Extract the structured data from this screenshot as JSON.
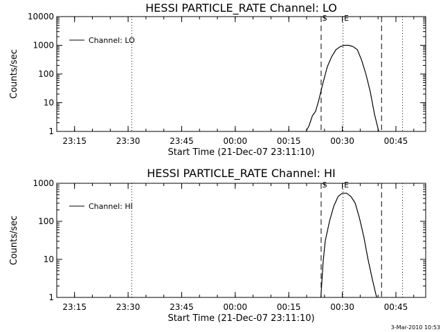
{
  "footer": {
    "timestamp": "3-Mar-2010 10:53"
  },
  "chart_data": [
    {
      "type": "line",
      "title": "HESSI PARTICLE_RATE Channel: LO",
      "xlabel": "Start Time (21-Dec-07 23:11:10)",
      "ylabel": "Counts/sec",
      "yscale": "log",
      "xlim": [
        23.167,
        24.889
      ],
      "ylim": [
        1,
        10000
      ],
      "x_tick_values": [
        23.25,
        23.5,
        23.75,
        24.0,
        24.25,
        24.5,
        24.75
      ],
      "x_tick_labels": [
        "23:15",
        "23:30",
        "23:45",
        "00:00",
        "00:15",
        "00:30",
        "00:45"
      ],
      "y_tick_values": [
        1,
        10,
        100,
        1000,
        10000
      ],
      "y_tick_labels": [
        "1",
        "10",
        "100",
        "1000",
        "10000"
      ],
      "legend": {
        "label": "Channel: LO",
        "position": "top-left"
      },
      "series": [
        {
          "name": "Channel: LO",
          "x": [
            24.33,
            24.345,
            24.36,
            24.375,
            24.39,
            24.41,
            24.43,
            24.45,
            24.47,
            24.49,
            24.51,
            24.53,
            24.55,
            24.57,
            24.59,
            24.61,
            24.63,
            24.65,
            24.67
          ],
          "y": [
            1,
            1.6,
            3.5,
            5,
            12,
            50,
            180,
            400,
            700,
            900,
            1000,
            1000,
            900,
            700,
            300,
            100,
            25,
            4,
            1
          ]
        }
      ],
      "vertical_lines": [
        {
          "x": 23.517,
          "style": "dotted"
        },
        {
          "x": 24.401,
          "style": "dashed"
        },
        {
          "x": 24.503,
          "style": "dotted"
        },
        {
          "x": 24.683,
          "style": "dashed"
        },
        {
          "x": 24.781,
          "style": "dotted"
        }
      ],
      "markers": [
        {
          "x": 24.401,
          "label": "S"
        },
        {
          "x": 24.503,
          "label": "E"
        }
      ]
    },
    {
      "type": "line",
      "title": "HESSI PARTICLE_RATE Channel: HI",
      "xlabel": "Start Time (21-Dec-07 23:11:10)",
      "ylabel": "Counts/sec",
      "yscale": "log",
      "xlim": [
        23.167,
        24.889
      ],
      "ylim": [
        1,
        1000
      ],
      "x_tick_values": [
        23.25,
        23.5,
        23.75,
        24.0,
        24.25,
        24.5,
        24.75
      ],
      "x_tick_labels": [
        "23:15",
        "23:30",
        "23:45",
        "00:00",
        "00:15",
        "00:30",
        "00:45"
      ],
      "y_tick_values": [
        1,
        10,
        100,
        1000
      ],
      "y_tick_labels": [
        "1",
        "10",
        "100",
        "1000"
      ],
      "legend": {
        "label": "Channel: HI",
        "position": "top-left"
      },
      "series": [
        {
          "name": "Channel: HI",
          "x": [
            24.4,
            24.403,
            24.41,
            24.42,
            24.44,
            24.46,
            24.48,
            24.5,
            24.52,
            24.54,
            24.56,
            24.58,
            24.6,
            24.62,
            24.64,
            24.66
          ],
          "y": [
            1,
            2,
            8,
            30,
            100,
            250,
            450,
            550,
            550,
            450,
            300,
            120,
            40,
            10,
            3,
            1
          ]
        }
      ],
      "vertical_lines": [
        {
          "x": 23.517,
          "style": "dotted"
        },
        {
          "x": 24.401,
          "style": "dashed"
        },
        {
          "x": 24.503,
          "style": "dotted"
        },
        {
          "x": 24.683,
          "style": "dashed"
        },
        {
          "x": 24.781,
          "style": "dotted"
        }
      ],
      "markers": [
        {
          "x": 24.401,
          "label": "S"
        },
        {
          "x": 24.503,
          "label": "E"
        }
      ]
    }
  ]
}
